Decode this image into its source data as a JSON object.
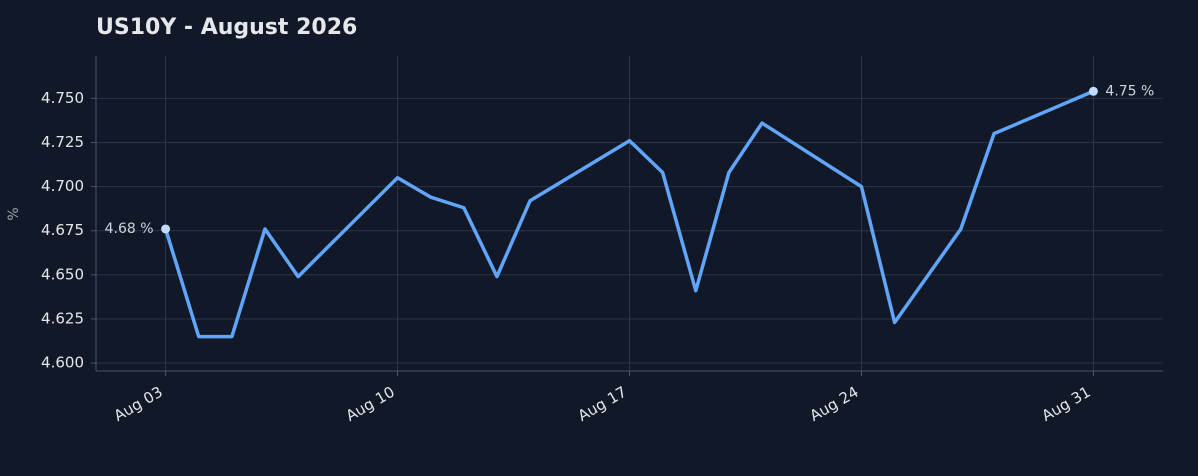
{
  "chart_data": {
    "type": "line",
    "title": "US10Y - August 2026",
    "ylabel": "%",
    "x": [
      3,
      4,
      5,
      6,
      7,
      10,
      11,
      12,
      13,
      14,
      17,
      18,
      19,
      20,
      21,
      24,
      25,
      27,
      28,
      31
    ],
    "series": [
      {
        "name": "US10Y",
        "color": "#60a5fa",
        "values": [
          4.676,
          4.615,
          4.615,
          4.676,
          4.649,
          4.705,
          4.694,
          4.688,
          4.649,
          4.692,
          4.726,
          4.708,
          4.641,
          4.708,
          4.736,
          4.7,
          4.623,
          4.676,
          4.73,
          4.754
        ],
        "value_labels": [
          "4.68 %",
          null,
          null,
          null,
          null,
          null,
          null,
          null,
          null,
          null,
          null,
          null,
          null,
          null,
          null,
          null,
          null,
          null,
          null,
          "4.75 %"
        ]
      }
    ],
    "xlim": [
      0.9,
      33.1
    ],
    "xticks": [
      {
        "value": 3,
        "label": "Aug 03"
      },
      {
        "value": 10,
        "label": "Aug 10"
      },
      {
        "value": 17,
        "label": "Aug 17"
      },
      {
        "value": 24,
        "label": "Aug 24"
      },
      {
        "value": 31,
        "label": "Aug 31"
      }
    ],
    "ylim": [
      4.5955,
      4.774
    ],
    "yticks": [
      {
        "value": 4.6,
        "label": "4.600"
      },
      {
        "value": 4.625,
        "label": "4.625"
      },
      {
        "value": 4.65,
        "label": "4.650"
      },
      {
        "value": 4.675,
        "label": "4.675"
      },
      {
        "value": 4.7,
        "label": "4.700"
      },
      {
        "value": 4.725,
        "label": "4.725"
      },
      {
        "value": 4.75,
        "label": "4.750"
      }
    ],
    "grid": true
  }
}
